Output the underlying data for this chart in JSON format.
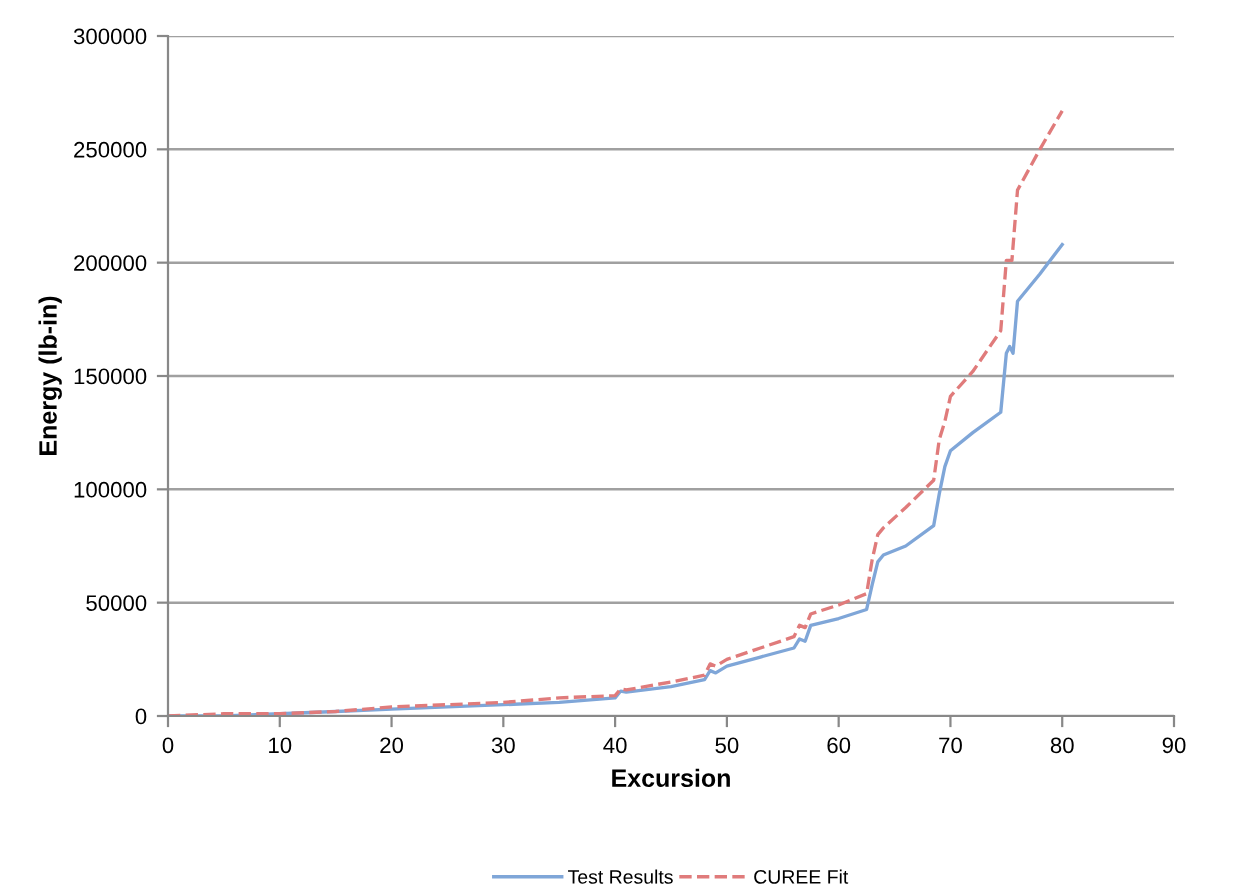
{
  "chart_data": {
    "type": "line",
    "xlabel": "Excursion",
    "ylabel": "Energy (lb-in)",
    "xlim": [
      0,
      90
    ],
    "xticks": [
      0,
      10,
      20,
      30,
      40,
      50,
      60,
      70,
      80,
      90
    ],
    "ylim": [
      0,
      300000
    ],
    "yticks": [
      0,
      50000,
      100000,
      150000,
      200000,
      250000,
      300000
    ],
    "grid": "y",
    "legend": "bottom",
    "series": [
      {
        "name": "Test Results",
        "color": "#7fa6d8",
        "line_style": "solid",
        "x": [
          0,
          5,
          10,
          15,
          20,
          25,
          30,
          35,
          40,
          40.5,
          41,
          45,
          48,
          48.5,
          49,
          50,
          53,
          56,
          56.5,
          57,
          57.5,
          60,
          62.5,
          63,
          63.5,
          64,
          66,
          68.5,
          69,
          69.5,
          70,
          72,
          74.5,
          75,
          75.3,
          75.6,
          76,
          78,
          80
        ],
        "values": [
          0,
          0,
          1000,
          2000,
          3000,
          4000,
          5000,
          6000,
          8000,
          11000,
          10500,
          13000,
          16000,
          20000,
          19000,
          22000,
          26000,
          30000,
          34000,
          33000,
          40000,
          43000,
          47000,
          58000,
          68000,
          71000,
          75000,
          84000,
          98000,
          110000,
          117000,
          125000,
          134000,
          160000,
          163000,
          160000,
          183000,
          195000,
          208000
        ]
      },
      {
        "name": "CUREE Fit",
        "color": "#e07b7b",
        "line_style": "dashed",
        "x": [
          0,
          5,
          10,
          15,
          20,
          25,
          30,
          35,
          40,
          40.5,
          41,
          45,
          48,
          48.5,
          49,
          50,
          53,
          56,
          56.5,
          57,
          57.5,
          60,
          62.5,
          63,
          63.5,
          64,
          66,
          68.5,
          69,
          69.5,
          70,
          72,
          74.5,
          75,
          75.5,
          76,
          78,
          80
        ],
        "values": [
          0,
          1000,
          1000,
          2000,
          4000,
          5000,
          6000,
          8000,
          9000,
          12000,
          11500,
          15000,
          18000,
          23000,
          22000,
          25000,
          30000,
          35000,
          40000,
          39000,
          45000,
          49000,
          54000,
          69000,
          80000,
          83000,
          92000,
          104000,
          122000,
          130000,
          141000,
          152000,
          170000,
          201000,
          201000,
          232000,
          250000,
          267000
        ]
      }
    ]
  }
}
